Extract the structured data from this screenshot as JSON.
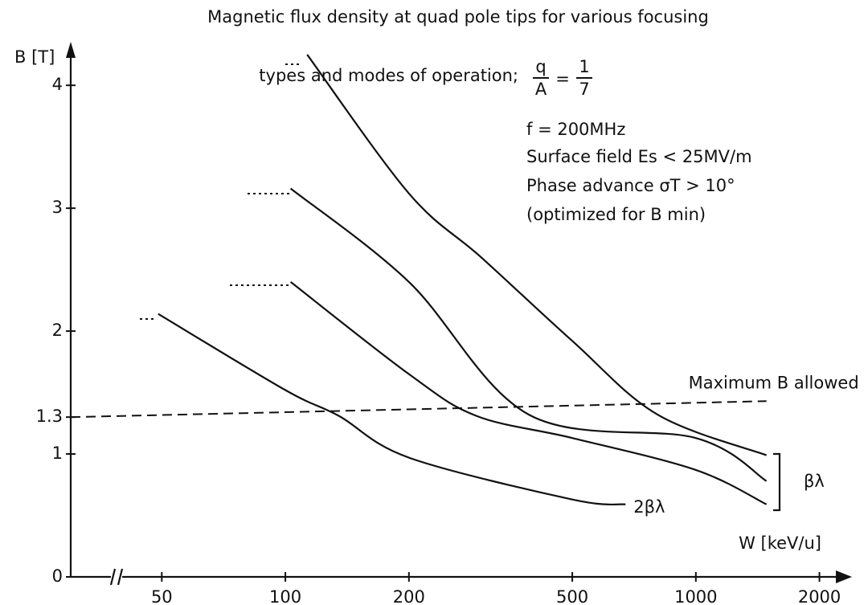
{
  "chart_data": {
    "type": "line",
    "title": "Magnetic flux density at quad pole tips for various focusing",
    "subtitle": "types and modes of operation;",
    "fraction": {
      "left_num": "q",
      "left_den": "A",
      "right_num": "1",
      "right_den": "7"
    },
    "y_label": "B [T]",
    "x_label": "W [keV/u]",
    "annotations": [
      "f = 200MHz",
      "Surface field Es < 25MV/m",
      "Phase advance σT > 10°",
      "(optimized for B min)"
    ],
    "group_label": "βλ",
    "log_x": true,
    "xlim": [
      30,
      2400
    ],
    "ylim": [
      0,
      4.4
    ],
    "xticks": [
      50,
      100,
      200,
      500,
      1000,
      2000
    ],
    "yticks": [
      0,
      1,
      1.3,
      2,
      3,
      4
    ],
    "color": "#111111",
    "series": [
      {
        "x": [
          113,
          200,
          300,
          500,
          807,
          1486
        ],
        "values": [
          4.25,
          3.12,
          2.6,
          1.92,
          1.32,
          0.99
        ]
      },
      {
        "x": [
          103,
          200,
          392,
          1000,
          1486
        ],
        "values": [
          3.16,
          2.4,
          1.32,
          1.13,
          0.78
        ]
      },
      {
        "x": [
          103,
          200,
          292,
          500,
          1000,
          1486
        ],
        "values": [
          2.4,
          1.65,
          1.31,
          1.13,
          0.87,
          0.59
        ]
      },
      {
        "name": "2βλ",
        "x": [
          49,
          100,
          135,
          200,
          500,
          674
        ],
        "values": [
          2.14,
          1.52,
          1.31,
          0.97,
          0.63,
          0.59
        ]
      }
    ],
    "reference_line": {
      "label": "Maximum B allowed",
      "x": [
        30,
        1486
      ],
      "values": [
        1.3,
        1.43
      ]
    }
  }
}
